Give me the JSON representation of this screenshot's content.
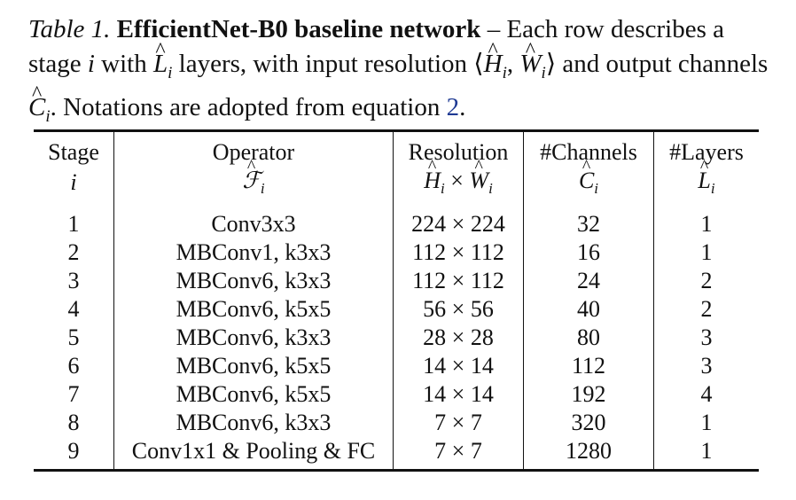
{
  "caption": {
    "label": "Table 1.",
    "title": "EfficientNet-B0 baseline network",
    "text_1": " – Each row describes a stage ",
    "var_i": "i",
    "text_2": " with ",
    "L": "L",
    "text_3": " layers, with input resolution ",
    "res_open": "⟨",
    "H": "H",
    "comma": ", ",
    "W": "W",
    "res_close": "⟩",
    "text_4": " and output channels ",
    "C": "C",
    "text_5": ". Notations are adopted from equation ",
    "eq_ref": "2",
    "text_6": ".",
    "sub_i": "i"
  },
  "table": {
    "headers": [
      {
        "label": "Stage",
        "symbol": "i"
      },
      {
        "label": "Operator",
        "symbol": "F"
      },
      {
        "label": "Resolution",
        "symbol": "H × W"
      },
      {
        "label": "#Channels",
        "symbol": "C"
      },
      {
        "label": "#Layers",
        "symbol": "L"
      }
    ],
    "sub_i": "i",
    "times": "×",
    "rows": [
      {
        "stage": "1",
        "operator": "Conv3x3",
        "resolution": "224 × 224",
        "channels": "32",
        "layers": "1"
      },
      {
        "stage": "2",
        "operator": "MBConv1, k3x3",
        "resolution": "112 × 112",
        "channels": "16",
        "layers": "1"
      },
      {
        "stage": "3",
        "operator": "MBConv6, k3x3",
        "resolution": "112 × 112",
        "channels": "24",
        "layers": "2"
      },
      {
        "stage": "4",
        "operator": "MBConv6, k5x5",
        "resolution": "56 × 56",
        "channels": "40",
        "layers": "2"
      },
      {
        "stage": "5",
        "operator": "MBConv6, k3x3",
        "resolution": "28 × 28",
        "channels": "80",
        "layers": "3"
      },
      {
        "stage": "6",
        "operator": "MBConv6, k5x5",
        "resolution": "14 × 14",
        "channels": "112",
        "layers": "3"
      },
      {
        "stage": "7",
        "operator": "MBConv6, k5x5",
        "resolution": "14 × 14",
        "channels": "192",
        "layers": "4"
      },
      {
        "stage": "8",
        "operator": "MBConv6, k3x3",
        "resolution": "7 × 7",
        "channels": "320",
        "layers": "1"
      },
      {
        "stage": "9",
        "operator": "Conv1x1 & Pooling & FC",
        "resolution": "7 × 7",
        "channels": "1280",
        "layers": "1"
      }
    ]
  },
  "colors": {
    "text": "#111111",
    "link": "#1f3a93"
  }
}
